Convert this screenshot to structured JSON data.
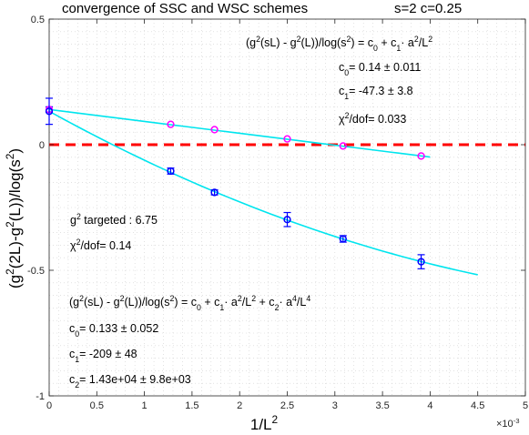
{
  "chart_data": {
    "type": "scatter",
    "title": "convergence of SSC and WSC schemes",
    "title_params": "s=2   c=0.25",
    "xlabel": {
      "base": "1/L",
      "exp": "2"
    },
    "ylabel": {
      "parts": [
        "(g",
        "2",
        "(2L)-g",
        "2",
        "(L))/log(s",
        "2",
        ")"
      ]
    },
    "x_multiplier": {
      "base": "×10",
      "exp": "-3"
    },
    "xlim": [
      0,
      0.005
    ],
    "ylim": [
      -1,
      0.5
    ],
    "x_ticks": [
      {
        "v": 0,
        "label": "0"
      },
      {
        "v": 0.0005,
        "label": "0.5"
      },
      {
        "v": 0.001,
        "label": "1"
      },
      {
        "v": 0.0015,
        "label": "1.5"
      },
      {
        "v": 0.002,
        "label": "2"
      },
      {
        "v": 0.0025,
        "label": "2.5"
      },
      {
        "v": 0.003,
        "label": "3"
      },
      {
        "v": 0.0035,
        "label": "3.5"
      },
      {
        "v": 0.004,
        "label": "4"
      },
      {
        "v": 0.0045,
        "label": "4.5"
      },
      {
        "v": 0.005,
        "label": "5"
      }
    ],
    "y_ticks": [
      {
        "v": 0.5,
        "label": "0.5"
      },
      {
        "v": 0,
        "label": "0"
      },
      {
        "v": -0.5,
        "label": "-0.5"
      },
      {
        "v": -1,
        "label": "-1"
      }
    ],
    "grid": "minor dotted",
    "reference_line": {
      "y": 0,
      "color": "#ff0000",
      "style": "dashed"
    },
    "series": [
      {
        "marker_color": "#ff00ff",
        "error_color": "#0000ff",
        "points": [
          {
            "x": 0.001276,
            "y": 0.081,
            "err": 0.0
          },
          {
            "x": 0.001736,
            "y": 0.06,
            "err": 0.0
          },
          {
            "x": 0.0025,
            "y": 0.023,
            "err": 0.0
          },
          {
            "x": 0.003086,
            "y": -0.005,
            "err": 0.0
          },
          {
            "x": 0.003906,
            "y": -0.045,
            "err": 0.0
          }
        ],
        "extrapolated": {
          "x": 0,
          "y": 0.14,
          "err": 0.011
        }
      },
      {
        "marker_color": "#0000ff",
        "error_color": "#0000ff",
        "points": [
          {
            "x": 0.001276,
            "y": -0.105,
            "err": 0.012
          },
          {
            "x": 0.001736,
            "y": -0.19,
            "err": 0.01
          },
          {
            "x": 0.0025,
            "y": -0.298,
            "err": 0.028
          },
          {
            "x": 0.003086,
            "y": -0.375,
            "err": 0.013
          },
          {
            "x": 0.003906,
            "y": -0.466,
            "err": 0.028
          }
        ],
        "extrapolated": {
          "x": 0,
          "y": 0.133,
          "err": 0.052
        }
      }
    ],
    "fits": [
      {
        "color": "#00e5ee",
        "c0": 0.14,
        "c1": -47.3,
        "c2": 0,
        "x_range": [
          0,
          0.004
        ]
      },
      {
        "color": "#00e5ee",
        "c0": 0.133,
        "c1": -209,
        "c2": 14300,
        "x_range": [
          0,
          0.0045
        ]
      }
    ],
    "annotations": {
      "fit1": {
        "formula": [
          {
            "t": "(g"
          },
          {
            "t": "2",
            "sup": true
          },
          {
            "t": "(sL) - g"
          },
          {
            "t": "2",
            "sup": true
          },
          {
            "t": "(L))/log(s"
          },
          {
            "t": "2",
            "sup": true
          },
          {
            "t": ") = c"
          },
          {
            "t": "0",
            "sub": true
          },
          {
            "t": " + c"
          },
          {
            "t": "1",
            "sub": true
          },
          {
            "t": "· a"
          },
          {
            "t": "2",
            "sup": true
          },
          {
            "t": "/L"
          },
          {
            "t": "2",
            "sup": true
          }
        ],
        "c0": [
          {
            "t": "c"
          },
          {
            "t": "0",
            "sub": true
          },
          {
            "t": "=  0.14 ± 0.011"
          }
        ],
        "c1": [
          {
            "t": "c"
          },
          {
            "t": "1",
            "sub": true
          },
          {
            "t": "=  -47.3 ± 3.8"
          }
        ],
        "chi2": [
          {
            "t": "χ"
          },
          {
            "t": "2",
            "sup": true
          },
          {
            "t": "/dof= 0.033"
          }
        ]
      },
      "fit2": {
        "target": [
          {
            "t": "g"
          },
          {
            "t": "2",
            "sup": true
          },
          {
            "t": " targeted : 6.75"
          }
        ],
        "chi2": [
          {
            "t": "χ"
          },
          {
            "t": "2",
            "sup": true
          },
          {
            "t": "/dof= 0.14"
          }
        ],
        "formula": [
          {
            "t": "(g"
          },
          {
            "t": "2",
            "sup": true
          },
          {
            "t": "(sL) - g"
          },
          {
            "t": "2",
            "sup": true
          },
          {
            "t": "(L))/log(s"
          },
          {
            "t": "2",
            "sup": true
          },
          {
            "t": ") = c"
          },
          {
            "t": "0",
            "sub": true
          },
          {
            "t": " + c"
          },
          {
            "t": "1",
            "sub": true
          },
          {
            "t": "· a"
          },
          {
            "t": "2",
            "sup": true
          },
          {
            "t": "/L"
          },
          {
            "t": "2",
            "sup": true
          },
          {
            "t": " + c"
          },
          {
            "t": "2",
            "sub": true
          },
          {
            "t": "· a"
          },
          {
            "t": "4",
            "sup": true
          },
          {
            "t": "/L"
          },
          {
            "t": "4",
            "sup": true
          }
        ],
        "c0": [
          {
            "t": "c"
          },
          {
            "t": "0",
            "sub": true
          },
          {
            "t": "=  0.133 ± 0.052"
          }
        ],
        "c1": [
          {
            "t": "c"
          },
          {
            "t": "1",
            "sub": true
          },
          {
            "t": "=  -209 ± 48"
          }
        ],
        "c2": [
          {
            "t": "c"
          },
          {
            "t": "2",
            "sub": true
          },
          {
            "t": "=  1.43e+04 ± 9.8e+03"
          }
        ]
      }
    }
  }
}
